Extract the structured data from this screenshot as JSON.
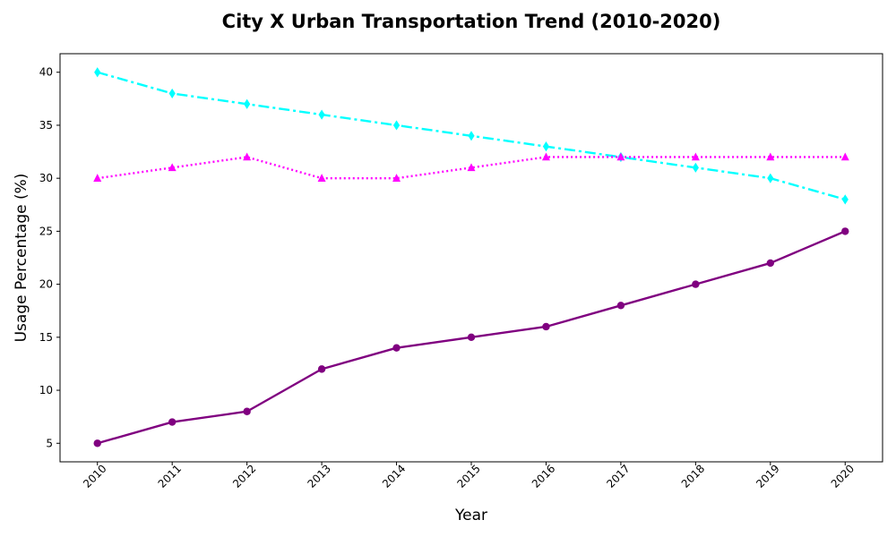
{
  "chart_data": {
    "type": "line",
    "title": "City X Urban Transportation Trend (2010-2020)",
    "xlabel": "Year",
    "ylabel": "Usage Percentage (%)",
    "x": [
      2010,
      2011,
      2012,
      2013,
      2014,
      2015,
      2016,
      2017,
      2018,
      2019,
      2020
    ],
    "x_tick_labels": [
      "2010",
      "2011",
      "2012",
      "2013",
      "2014",
      "2015",
      "2016",
      "2017",
      "2018",
      "2019",
      "2020"
    ],
    "y_ticks": [
      5,
      10,
      15,
      20,
      25,
      30,
      35,
      40
    ],
    "y_tick_labels": [
      "5",
      "10",
      "15",
      "20",
      "25",
      "30",
      "35",
      "40"
    ],
    "xlim": [
      2009.5,
      2020.5
    ],
    "ylim": [
      3.25,
      41.75
    ],
    "grid": false,
    "legend": "none",
    "series": [
      {
        "values": [
          5,
          7,
          8,
          12,
          14,
          15,
          16,
          18,
          20,
          22,
          25
        ],
        "color": "#800080",
        "line_style": "solid",
        "marker": "circle"
      },
      {
        "values": [
          40,
          38,
          37,
          36,
          35,
          34,
          33,
          32,
          31,
          30,
          28
        ],
        "color": "#00ffff",
        "line_style": "dash-dot",
        "marker": "diamond"
      },
      {
        "values": [
          30,
          31,
          32,
          30,
          30,
          31,
          32,
          32,
          32,
          32,
          32
        ],
        "color": "#ff00ff",
        "line_style": "dotted",
        "marker": "triangle"
      }
    ]
  }
}
